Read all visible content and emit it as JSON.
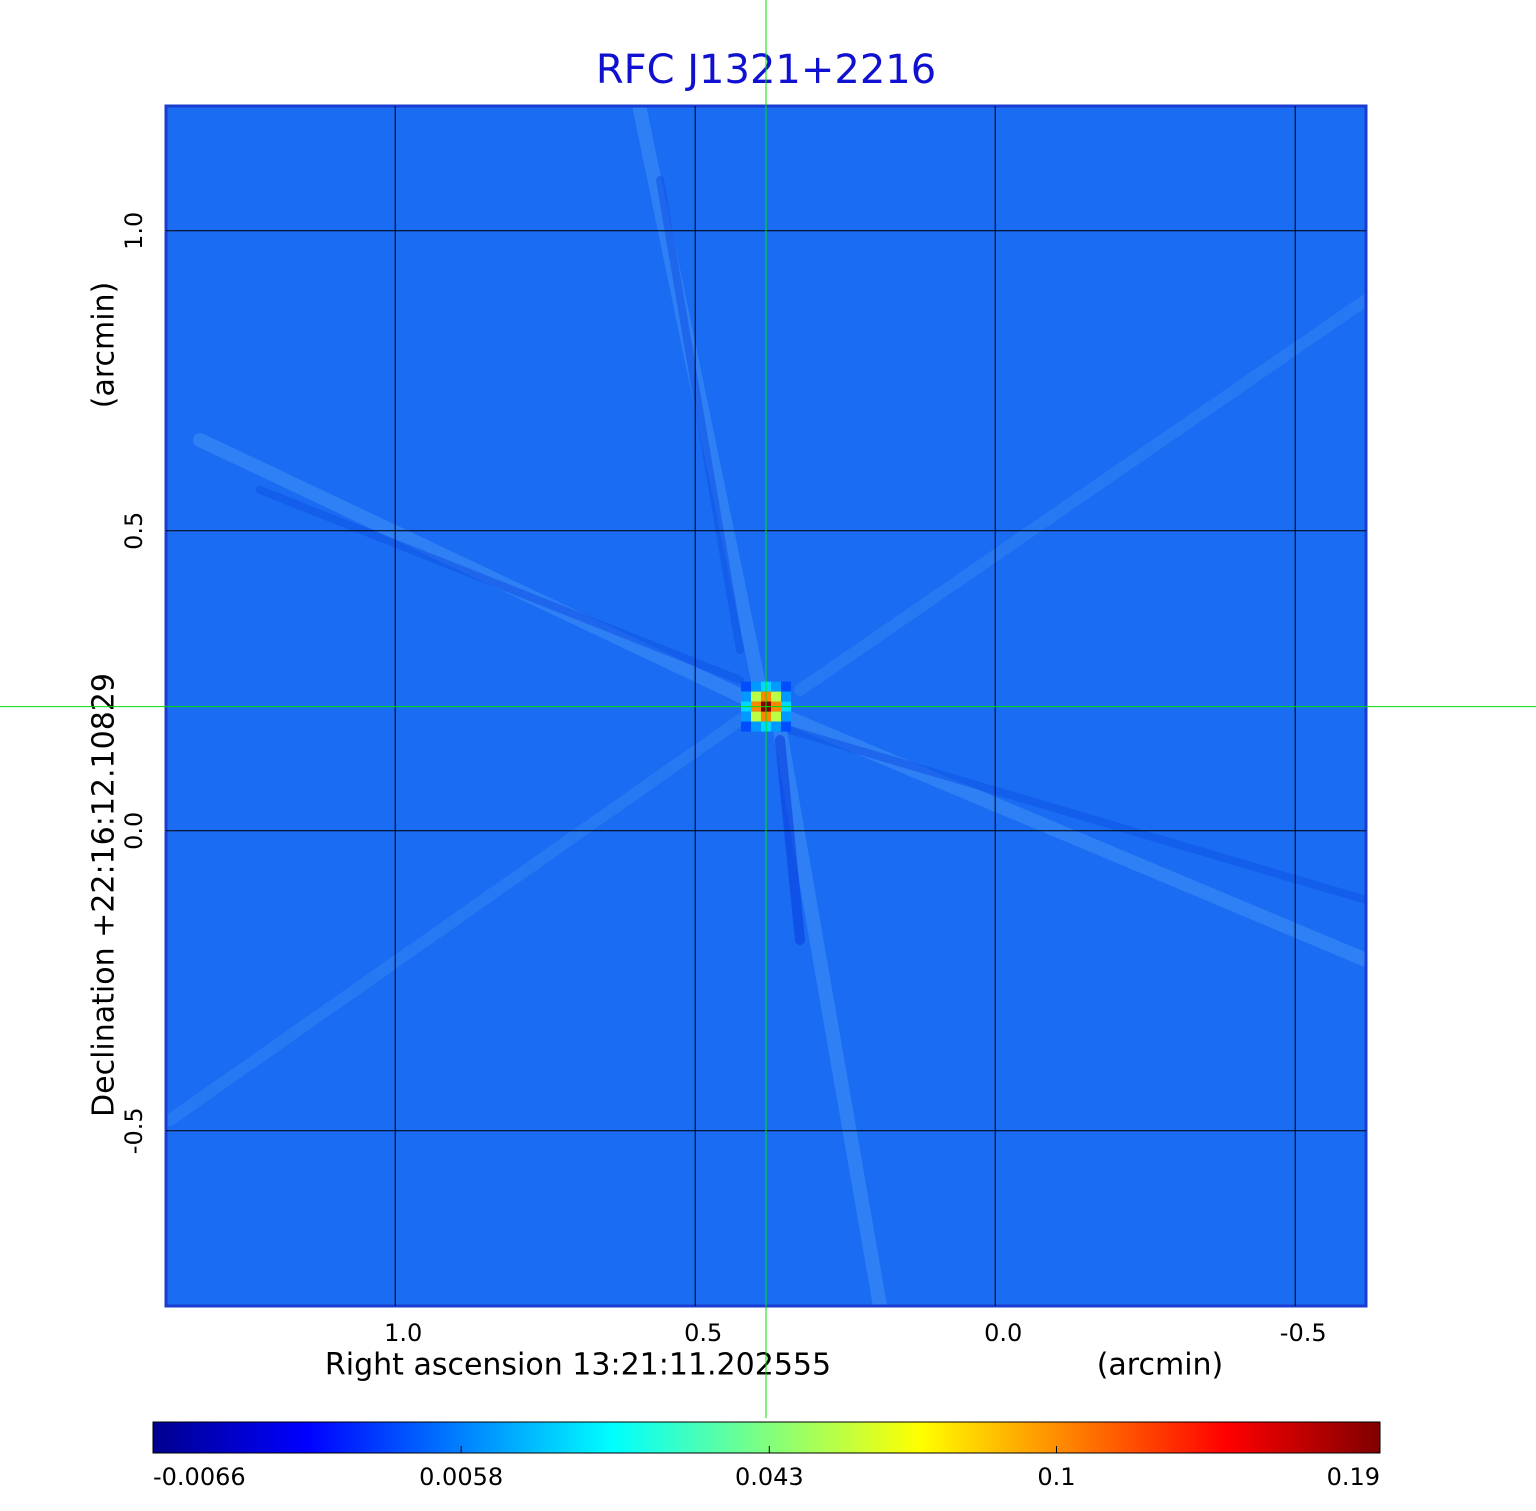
{
  "chart_data": {
    "type": "image",
    "title": "RFC J1321+2216",
    "x_label": "Right ascension  13:21:11.202555",
    "x_unit": "(arcmin)",
    "y_label": "Declination  +22:16:12.10829",
    "y_unit": "(arcmin)",
    "xlim": [
      1.382,
      -0.618
    ],
    "ylim": [
      -0.792,
      1.208
    ],
    "xticks": [
      {
        "value": 1,
        "label": "1.0"
      },
      0.5,
      {
        "value": 0,
        "label": "0.0"
      },
      -0.5
    ],
    "yticks": [
      -0.5,
      {
        "value": 0,
        "label": "0.0"
      },
      0.5,
      {
        "value": 1,
        "label": "1.0"
      }
    ],
    "grid": true,
    "source": {
      "x": 0.382,
      "y": 0.207,
      "peak": 0.19
    },
    "colorbar": {
      "lim": [
        -0.0066,
        0.19
      ],
      "scale": "sqrt",
      "ticks": [
        -0.0066,
        0.0058,
        0.043,
        0.1,
        0.19
      ]
    }
  }
}
